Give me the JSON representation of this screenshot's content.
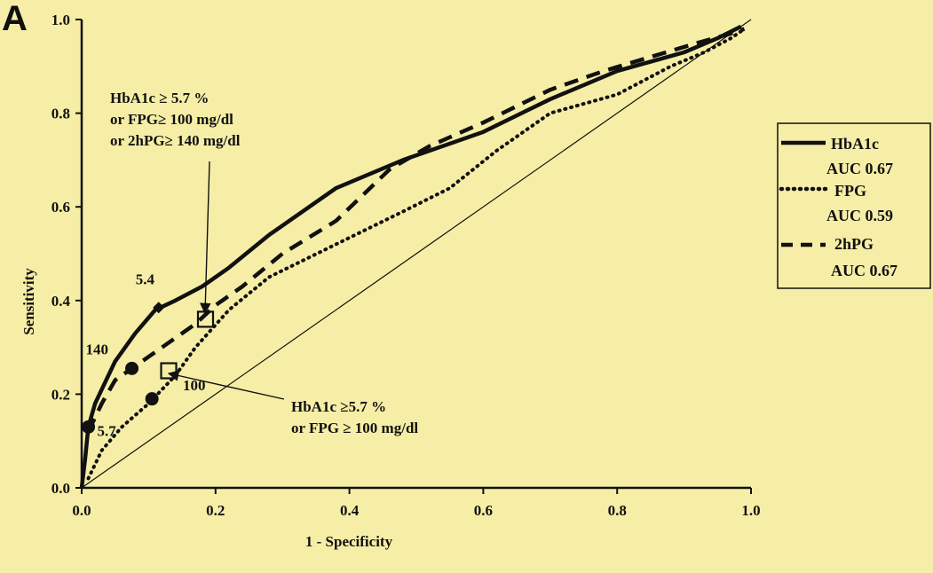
{
  "panel_label": "A",
  "colors": {
    "background": "#f6eea6",
    "ink": "#111111"
  },
  "chart_data": {
    "type": "line",
    "title": "",
    "xlabel": "1 - Specificity",
    "ylabel": "Sensitivity",
    "xlim": [
      0.0,
      1.0
    ],
    "ylim": [
      0.0,
      1.0
    ],
    "x_ticks": [
      "0.0",
      "0.2",
      "0.4",
      "0.6",
      "0.8",
      "1.0"
    ],
    "y_ticks": [
      "0.0",
      "0.2",
      "0.4",
      "0.6",
      "0.8",
      "1.0"
    ],
    "grid": false,
    "legend_position": "right",
    "reference_line": {
      "x": [
        0,
        1
      ],
      "y": [
        0,
        1
      ]
    },
    "series": [
      {
        "name": "HbA1c",
        "auc_label": "AUC 0.67",
        "style": "solid",
        "x": [
          0.0,
          0.005,
          0.01,
          0.02,
          0.03,
          0.05,
          0.08,
          0.11,
          0.14,
          0.18,
          0.22,
          0.28,
          0.38,
          0.48,
          0.6,
          0.7,
          0.8,
          0.9,
          0.95,
          0.985
        ],
        "y": [
          0.0,
          0.06,
          0.13,
          0.18,
          0.21,
          0.27,
          0.33,
          0.38,
          0.4,
          0.43,
          0.47,
          0.54,
          0.64,
          0.7,
          0.76,
          0.83,
          0.89,
          0.93,
          0.96,
          0.985
        ]
      },
      {
        "name": "FPG",
        "auc_label": "AUC 0.59",
        "style": "dotted",
        "x": [
          0.01,
          0.03,
          0.06,
          0.1,
          0.14,
          0.17,
          0.22,
          0.28,
          0.38,
          0.48,
          0.55,
          0.62,
          0.7,
          0.8,
          0.88,
          0.93,
          0.97,
          0.99
        ],
        "y": [
          0.02,
          0.08,
          0.13,
          0.18,
          0.24,
          0.3,
          0.38,
          0.45,
          0.52,
          0.59,
          0.64,
          0.72,
          0.8,
          0.84,
          0.9,
          0.93,
          0.96,
          0.98
        ]
      },
      {
        "name": "2hPG",
        "auc_label": "AUC 0.67",
        "style": "dashed",
        "x": [
          0.01,
          0.03,
          0.05,
          0.07,
          0.1,
          0.13,
          0.17,
          0.2,
          0.24,
          0.3,
          0.38,
          0.46,
          0.52,
          0.6,
          0.7,
          0.78,
          0.85,
          0.92,
          0.97,
          0.99
        ],
        "y": [
          0.12,
          0.18,
          0.23,
          0.25,
          0.28,
          0.31,
          0.35,
          0.39,
          0.43,
          0.5,
          0.57,
          0.68,
          0.73,
          0.78,
          0.85,
          0.89,
          0.92,
          0.95,
          0.97,
          0.98
        ]
      }
    ],
    "markers": [
      {
        "shape": "circle",
        "x": 0.01,
        "y": 0.13,
        "label": "5.7"
      },
      {
        "shape": "diamond",
        "x": 0.115,
        "y": 0.385,
        "label": "5.4"
      },
      {
        "shape": "circle",
        "x": 0.075,
        "y": 0.255,
        "label": "140"
      },
      {
        "shape": "circle",
        "x": 0.105,
        "y": 0.19,
        "label": ""
      },
      {
        "shape": "square",
        "x": 0.13,
        "y": 0.25,
        "label": "100"
      },
      {
        "shape": "square",
        "x": 0.185,
        "y": 0.36,
        "label": ""
      }
    ],
    "annotations": [
      {
        "lines": [
          "HbA1c ≥ 5.7 %",
          "or FPG≥ 100 mg/dl",
          "or 2hPG≥ 140 mg/dl"
        ],
        "points_to": {
          "x": 0.185,
          "y": 0.36
        }
      },
      {
        "lines": [
          "HbA1c ≥5.7 %",
          "or FPG ≥ 100 mg/dl"
        ],
        "points_to": {
          "x": 0.13,
          "y": 0.25
        }
      }
    ]
  }
}
